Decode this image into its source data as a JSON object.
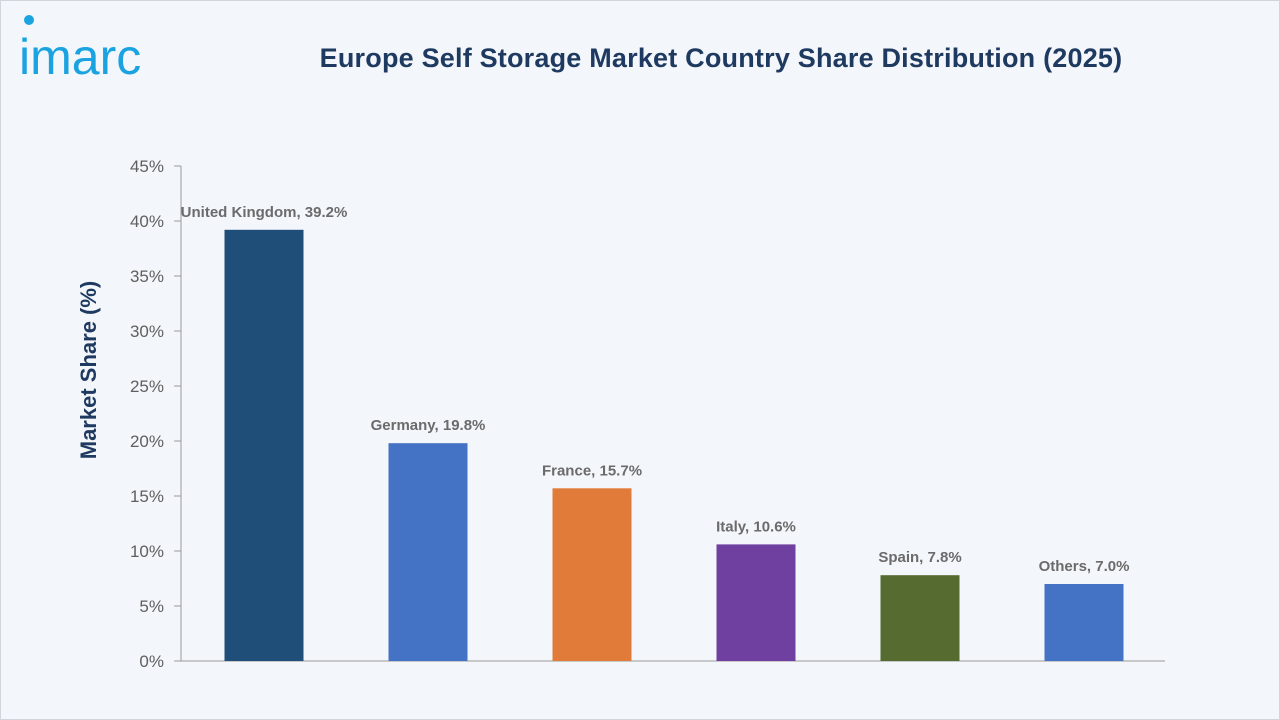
{
  "brand": {
    "logo_text": "imarc",
    "logo_color": "#1aa3e0"
  },
  "chart_data": {
    "type": "bar",
    "title": "Europe Self Storage Market Country Share Distribution (2025)",
    "xlabel": "",
    "ylabel": "Market Share (%)",
    "ylim": [
      0,
      45
    ],
    "yticks": [
      0,
      5,
      10,
      15,
      20,
      25,
      30,
      35,
      40,
      45
    ],
    "ytick_format": "%",
    "grid": false,
    "categories": [
      "United Kingdom",
      "Germany",
      "France",
      "Italy",
      "Spain",
      "Others"
    ],
    "values": [
      39.2,
      19.8,
      15.7,
      10.6,
      7.8,
      7.0
    ],
    "data_labels": [
      "United Kingdom, 39.2%",
      "Germany, 19.8%",
      "France, 15.7%",
      "Italy, 10.6%",
      "Spain, 7.8%",
      "Others, 7.0%"
    ],
    "colors": [
      "#1f4e79",
      "#4472c4",
      "#e07b39",
      "#7040a0",
      "#556b2f",
      "#4472c4"
    ]
  }
}
